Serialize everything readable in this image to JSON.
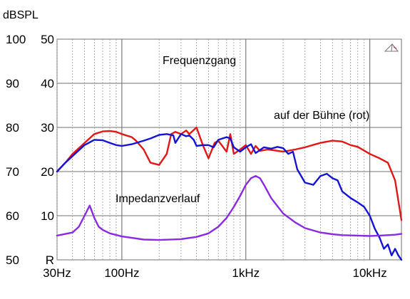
{
  "chart_data": {
    "type": "line",
    "y_unit_label": "dBSPL",
    "x_scale": "log",
    "xlim": [
      30,
      18000
    ],
    "ylim_spl": [
      50,
      100
    ],
    "ylim_impedance": [
      0,
      50
    ],
    "x_tick_labels": [
      {
        "value": 30,
        "label": "30Hz"
      },
      {
        "value": 100,
        "label": "100Hz"
      },
      {
        "value": 1000,
        "label": "1kHz"
      },
      {
        "value": 10000,
        "label": "10kHz"
      }
    ],
    "y_tick_labels_spl": [
      "100",
      "90",
      "80",
      "70",
      "60",
      "50"
    ],
    "y_tick_labels_impedance": [
      "50",
      "40",
      "30",
      "20",
      "10",
      "R"
    ],
    "y_tick_values": [
      100,
      90,
      80,
      70,
      60,
      50
    ],
    "grid": true,
    "annotations": {
      "frequenzgang": "Frequenzgang",
      "buehne": "auf der Bühne (rot)",
      "impedanz": "Impedanzverlauf"
    },
    "colors": {
      "red": "#e01818",
      "blue": "#1414d2",
      "purple": "#8a2be2",
      "grid_major": "#707070",
      "grid_minor": "#9a9a9a"
    },
    "series": [
      {
        "color": "red",
        "unit": "dBSPL",
        "x": [
          30,
          35,
          40,
          50,
          60,
          70,
          80,
          90,
          100,
          120,
          130,
          150,
          170,
          200,
          230,
          250,
          270,
          300,
          330,
          350,
          400,
          450,
          500,
          560,
          600,
          700,
          750,
          800,
          900,
          1000,
          1100,
          1200,
          1300,
          1500,
          1700,
          2000,
          2500,
          3000,
          4000,
          5000,
          6000,
          7000,
          8000,
          10000,
          12000,
          14000,
          16000,
          18000
        ],
        "y": [
          70,
          72,
          74,
          76.5,
          78.5,
          79.1,
          79.2,
          79,
          78.5,
          77.8,
          77,
          75,
          72,
          71.5,
          74,
          78.5,
          79,
          78.5,
          79.3,
          78.5,
          80,
          76,
          73,
          76.5,
          77,
          74.5,
          78.5,
          74,
          75,
          76,
          74,
          75.8,
          74.7,
          75,
          74.8,
          74.5,
          75,
          75.5,
          76.5,
          77,
          76.8,
          76,
          75.6,
          74,
          73,
          72,
          68,
          59
        ]
      },
      {
        "color": "blue",
        "unit": "dBSPL",
        "x": [
          30,
          35,
          40,
          50,
          60,
          70,
          80,
          90,
          100,
          120,
          150,
          170,
          200,
          230,
          260,
          270,
          300,
          330,
          350,
          380,
          400,
          450,
          500,
          550,
          600,
          700,
          750,
          800,
          900,
          1000,
          1100,
          1200,
          1400,
          1600,
          1800,
          2000,
          2200,
          2400,
          2600,
          3000,
          3500,
          4000,
          4500,
          5000,
          5500,
          6000,
          7000,
          8000,
          9000,
          10000,
          11000,
          12000,
          13000,
          14000,
          15000,
          16000,
          17000,
          18000
        ],
        "y": [
          70,
          72,
          73.5,
          76,
          77.2,
          77.1,
          76.5,
          76,
          75.8,
          76.2,
          77,
          77.5,
          78.3,
          78.5,
          78.2,
          76.5,
          78.5,
          78,
          78.2,
          77.2,
          75.8,
          76,
          76,
          75.5,
          77.2,
          77.8,
          77.5,
          75.5,
          74.5,
          75.5,
          76.2,
          74.2,
          75.5,
          75.2,
          75.6,
          75.3,
          74,
          74.5,
          70.5,
          67.5,
          67,
          69,
          69.5,
          68.5,
          68,
          65.5,
          64,
          63,
          62,
          60,
          57,
          55,
          52.5,
          53.5,
          51,
          52.5,
          51,
          50
        ]
      },
      {
        "color": "purple",
        "unit": "impedance",
        "x": [
          30,
          40,
          45,
          50,
          55,
          60,
          65,
          70,
          80,
          100,
          150,
          200,
          300,
          400,
          500,
          600,
          700,
          800,
          900,
          1000,
          1100,
          1200,
          1300,
          1400,
          1600,
          2000,
          2500,
          3000,
          4000,
          5000,
          6000,
          8000,
          10000,
          12000,
          14000,
          16000,
          18000
        ],
        "y": [
          5.5,
          6.2,
          7.5,
          10,
          12.3,
          9.5,
          7.5,
          6.8,
          6,
          5.3,
          4.6,
          4.5,
          4.7,
          5.2,
          6,
          7.5,
          9.5,
          12,
          14.5,
          17,
          18.5,
          19,
          18.5,
          17,
          14,
          10.5,
          8.5,
          7.2,
          6.2,
          5.8,
          5.6,
          5.5,
          5.4,
          5.5,
          5.6,
          5.7,
          5.9
        ]
      }
    ]
  }
}
